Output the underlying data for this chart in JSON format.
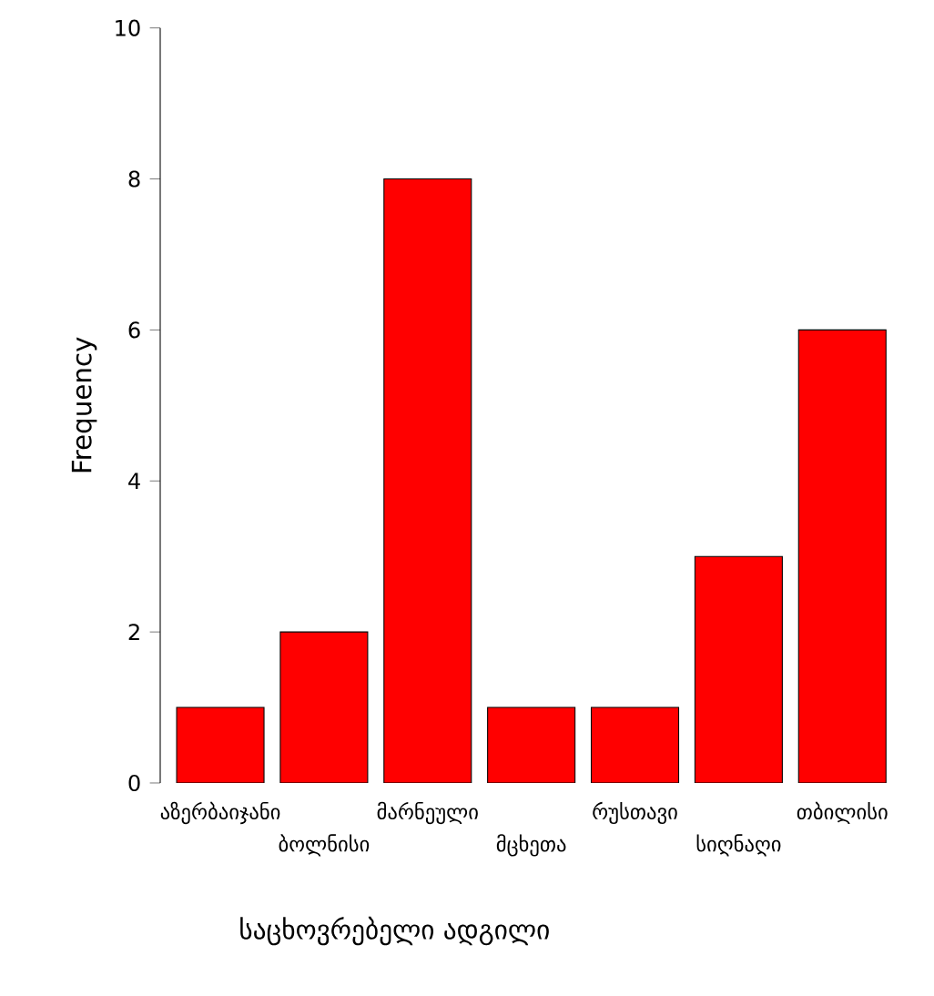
{
  "chart_data": {
    "type": "bar",
    "xlabel": "საცხოვრებელი ადგილი",
    "ylabel": "Frequency",
    "categories": [
      "აზერბაიჯანი",
      "ბოლნისი",
      "მარნეული",
      "მცხეთა",
      "რუსთავი",
      "სიღნაღი",
      "თბილისი"
    ],
    "values": [
      1,
      2,
      8,
      1,
      1,
      3,
      6
    ],
    "color": "#ff0000",
    "ylim": [
      0,
      10
    ],
    "yticks": [
      0,
      2,
      4,
      6,
      8,
      10
    ],
    "grid": false
  }
}
